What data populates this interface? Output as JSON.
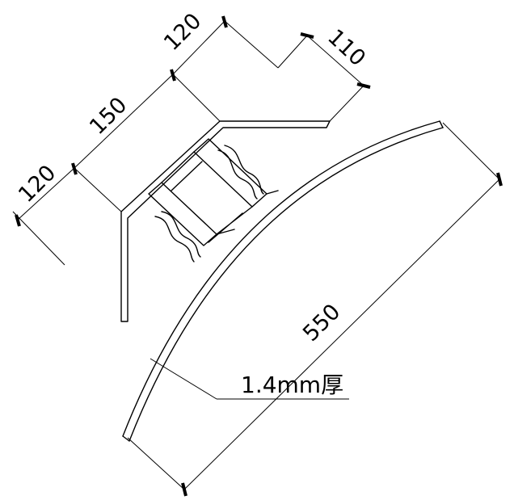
{
  "dimensions": {
    "d120_left": "120",
    "d150": "150",
    "d120_top": "120",
    "d110": "110",
    "d550": "550"
  },
  "note": {
    "thickness": "1.4mm厚"
  }
}
